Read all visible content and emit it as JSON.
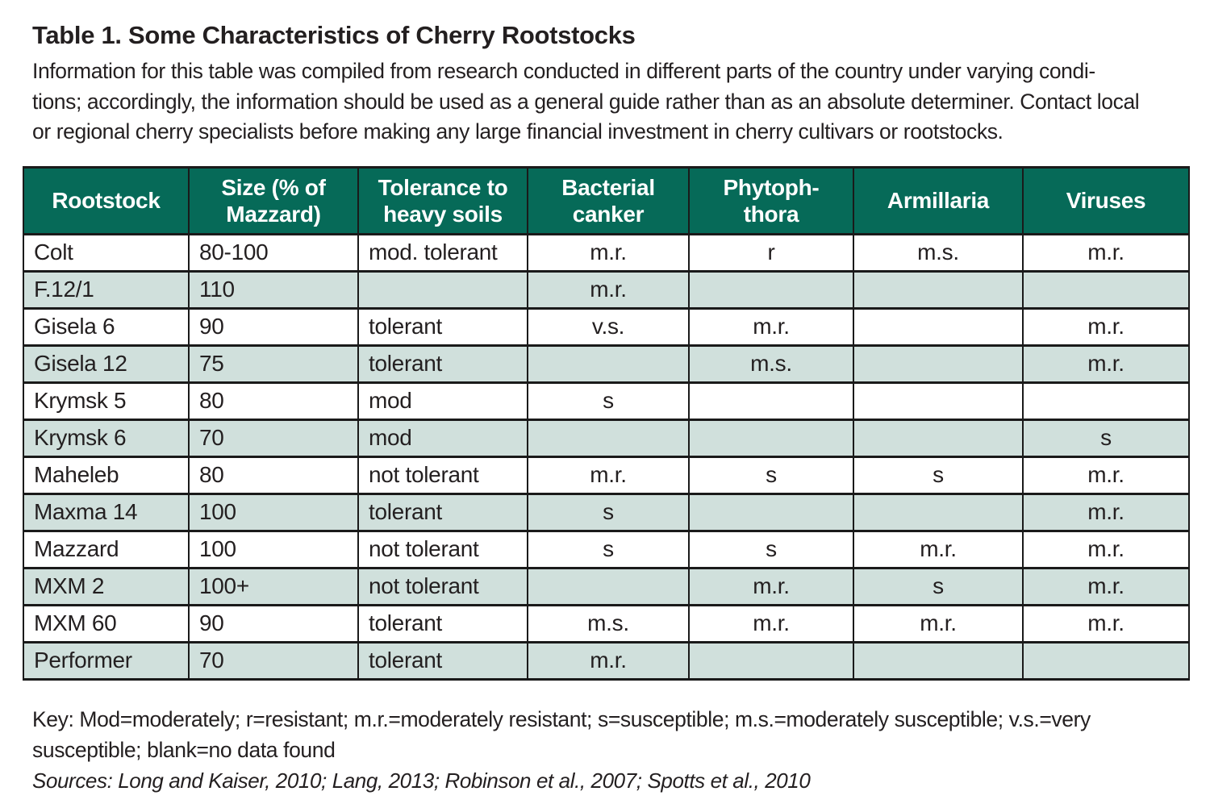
{
  "title": "Table 1. Some Characteristics of Cherry Rootstocks",
  "intro": {
    "lines": [
      "Information for this table was compiled from research conducted in different parts of the country under varying condi-",
      "tions; accordingly, the information should be used as a general guide rather than as an absolute determiner. Contact local",
      "or regional cherry specialists before making any large financial investment in cherry cultivars or rootstocks."
    ]
  },
  "table": {
    "columns": [
      "Rootstock",
      "Size (% of\nMazzard)",
      "Tolerance to\nheavy soils",
      "Bacterial\ncanker",
      "Phytoph-\nthora",
      "Armillaria",
      "Viruses"
    ],
    "rows": [
      [
        "Colt",
        "80-100",
        "mod. tolerant",
        "m.r.",
        "r",
        "m.s.",
        "m.r."
      ],
      [
        "F.12/1",
        "110",
        "",
        "m.r.",
        "",
        "",
        ""
      ],
      [
        "Gisela 6",
        "90",
        "tolerant",
        "v.s.",
        "m.r.",
        "",
        "m.r."
      ],
      [
        "Gisela 12",
        "75",
        "tolerant",
        "",
        "m.s.",
        "",
        "m.r."
      ],
      [
        "Krymsk 5",
        "80",
        "mod",
        "s",
        "",
        "",
        ""
      ],
      [
        "Krymsk 6",
        "70",
        "mod",
        "",
        "",
        "",
        "s"
      ],
      [
        "Maheleb",
        "80",
        "not tolerant",
        "m.r.",
        "s",
        "s",
        "m.r."
      ],
      [
        "Maxma 14",
        "100",
        "tolerant",
        "s",
        "",
        "",
        "m.r."
      ],
      [
        "Mazzard",
        "100",
        "not tolerant",
        "s",
        "s",
        "m.r.",
        "m.r."
      ],
      [
        "MXM 2",
        "100+",
        "not tolerant",
        "",
        "m.r.",
        "s",
        "m.r."
      ],
      [
        "MXM 60",
        "90",
        "tolerant",
        "m.s.",
        "m.r.",
        "m.r.",
        "m.r."
      ],
      [
        "Performer",
        "70",
        "tolerant",
        "m.r.",
        "",
        "",
        ""
      ]
    ]
  },
  "key": {
    "lines": [
      "Key: Mod=moderately; r=resistant; m.r.=moderately resistant; s=susceptible; m.s.=moderately susceptible; v.s.=very",
      "susceptible; blank=no data found"
    ]
  },
  "sources": "Sources: Long and Kaiser, 2010; Lang, 2013; Robinson et al., 2007; Spotts et al., 2010",
  "colors": {
    "header_bg": "#066a58",
    "row_alt_bg": "#d0e0dc",
    "border": "#1a1a1a",
    "text": "#231f20",
    "header_text": "#ffffff"
  }
}
